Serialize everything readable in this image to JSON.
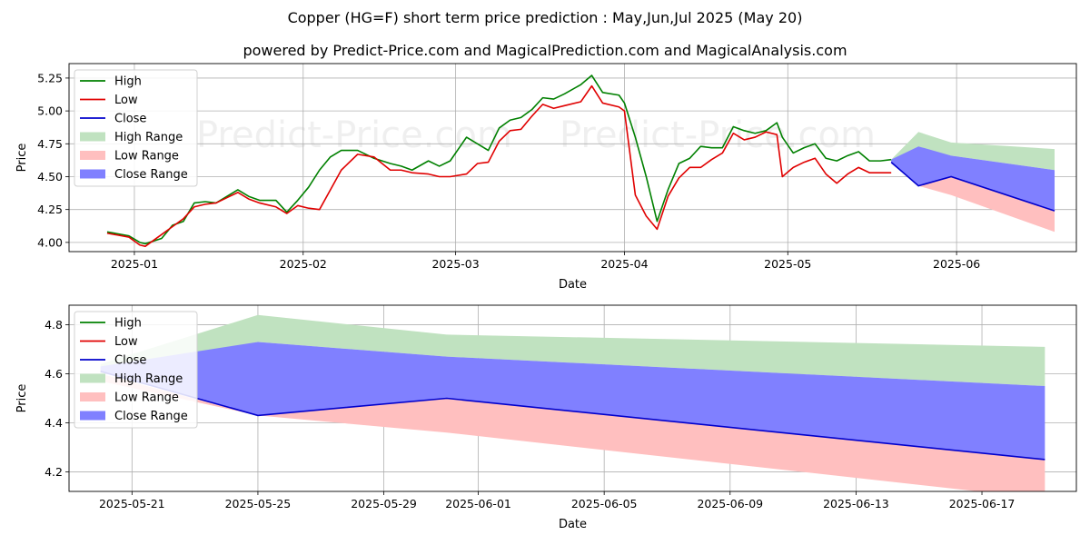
{
  "title": "Copper (HG=F) short term price prediction : May,Jun,Jul 2025 (May 20)",
  "subtitle": "powered by Predict-Price.com and MagicalPrediction.com and MagicalAnalysis.com",
  "watermark": "Predict-Price.com",
  "colors": {
    "high": "#008000",
    "low": "#e00000",
    "close": "#0000cc",
    "high_range": "#c0e2c0",
    "low_range": "#ffbfbf",
    "close_range": "#8080ff",
    "grid": "#b0b0b0"
  },
  "chart_data": [
    {
      "type": "line",
      "xlabel": "Date",
      "ylabel": "Price",
      "ylim": [
        3.93,
        5.36
      ],
      "xlim": [
        "2024-12-20",
        "2025-06-23"
      ],
      "x_ticks": [
        "2025-01",
        "2025-02",
        "2025-03",
        "2025-04",
        "2025-05",
        "2025-06"
      ],
      "y_ticks": [
        "4.00",
        "4.25",
        "4.50",
        "4.75",
        "5.00",
        "5.25"
      ],
      "legend_position": "upper-left",
      "grid": true,
      "series": [
        {
          "name": "High",
          "x": [
            "2024-12-27",
            "2024-12-31",
            "2025-01-02",
            "2025-01-03",
            "2025-01-06",
            "2025-01-08",
            "2025-01-10",
            "2025-01-12",
            "2025-01-14",
            "2025-01-16",
            "2025-01-20",
            "2025-01-22",
            "2025-01-24",
            "2025-01-27",
            "2025-01-29",
            "2025-01-31",
            "2025-02-02",
            "2025-02-04",
            "2025-02-06",
            "2025-02-08",
            "2025-02-11",
            "2025-02-14",
            "2025-02-17",
            "2025-02-19",
            "2025-02-21",
            "2025-02-24",
            "2025-02-26",
            "2025-02-28",
            "2025-03-03",
            "2025-03-05",
            "2025-03-07",
            "2025-03-09",
            "2025-03-11",
            "2025-03-13",
            "2025-03-15",
            "2025-03-17",
            "2025-03-19",
            "2025-03-21",
            "2025-03-24",
            "2025-03-26",
            "2025-03-28",
            "2025-03-31",
            "2025-04-01",
            "2025-04-03",
            "2025-04-05",
            "2025-04-07",
            "2025-04-09",
            "2025-04-11",
            "2025-04-13",
            "2025-04-15",
            "2025-04-17",
            "2025-04-19",
            "2025-04-21",
            "2025-04-23",
            "2025-04-25",
            "2025-04-27",
            "2025-04-29",
            "2025-04-30",
            "2025-05-02",
            "2025-05-04",
            "2025-05-06",
            "2025-05-08",
            "2025-05-10",
            "2025-05-12",
            "2025-05-14",
            "2025-05-16",
            "2025-05-18",
            "2025-05-20"
          ],
          "values": [
            4.08,
            4.05,
            4.0,
            3.99,
            4.03,
            4.13,
            4.16,
            4.3,
            4.31,
            4.3,
            4.4,
            4.35,
            4.32,
            4.32,
            4.23,
            4.32,
            4.42,
            4.55,
            4.65,
            4.7,
            4.7,
            4.64,
            4.6,
            4.58,
            4.55,
            4.62,
            4.58,
            4.62,
            4.8,
            4.75,
            4.7,
            4.87,
            4.93,
            4.95,
            5.01,
            5.1,
            5.09,
            5.13,
            5.2,
            5.27,
            5.14,
            5.12,
            5.06,
            4.8,
            4.5,
            4.16,
            4.4,
            4.6,
            4.64,
            4.73,
            4.72,
            4.72,
            4.88,
            4.85,
            4.83,
            4.85,
            4.91,
            4.8,
            4.68,
            4.72,
            4.75,
            4.64,
            4.62,
            4.66,
            4.69,
            4.62,
            4.62,
            4.63
          ]
        },
        {
          "name": "Low",
          "x": [
            "2024-12-27",
            "2024-12-31",
            "2025-01-02",
            "2025-01-03",
            "2025-01-06",
            "2025-01-08",
            "2025-01-10",
            "2025-01-12",
            "2025-01-14",
            "2025-01-16",
            "2025-01-20",
            "2025-01-22",
            "2025-01-24",
            "2025-01-27",
            "2025-01-29",
            "2025-01-31",
            "2025-02-02",
            "2025-02-04",
            "2025-02-06",
            "2025-02-08",
            "2025-02-11",
            "2025-02-14",
            "2025-02-17",
            "2025-02-19",
            "2025-02-21",
            "2025-02-24",
            "2025-02-26",
            "2025-02-28",
            "2025-03-03",
            "2025-03-05",
            "2025-03-07",
            "2025-03-09",
            "2025-03-11",
            "2025-03-13",
            "2025-03-15",
            "2025-03-17",
            "2025-03-19",
            "2025-03-21",
            "2025-03-24",
            "2025-03-26",
            "2025-03-28",
            "2025-03-31",
            "2025-04-01",
            "2025-04-03",
            "2025-04-05",
            "2025-04-07",
            "2025-04-09",
            "2025-04-11",
            "2025-04-13",
            "2025-04-15",
            "2025-04-17",
            "2025-04-19",
            "2025-04-21",
            "2025-04-23",
            "2025-04-25",
            "2025-04-27",
            "2025-04-29",
            "2025-04-30",
            "2025-05-02",
            "2025-05-04",
            "2025-05-06",
            "2025-05-08",
            "2025-05-10",
            "2025-05-12",
            "2025-05-14",
            "2025-05-16",
            "2025-05-18",
            "2025-05-20"
          ],
          "values": [
            4.07,
            4.04,
            3.98,
            3.97,
            4.06,
            4.12,
            4.18,
            4.27,
            4.29,
            4.3,
            4.38,
            4.33,
            4.3,
            4.27,
            4.22,
            4.28,
            4.26,
            4.25,
            4.4,
            4.55,
            4.67,
            4.65,
            4.55,
            4.55,
            4.53,
            4.52,
            4.5,
            4.5,
            4.52,
            4.6,
            4.61,
            4.77,
            4.85,
            4.86,
            4.96,
            5.05,
            5.02,
            5.04,
            5.07,
            5.19,
            5.06,
            5.03,
            5.0,
            4.36,
            4.2,
            4.1,
            4.35,
            4.49,
            4.57,
            4.57,
            4.63,
            4.68,
            4.83,
            4.78,
            4.8,
            4.84,
            4.82,
            4.5,
            4.57,
            4.61,
            4.64,
            4.52,
            4.45,
            4.52,
            4.57,
            4.53,
            4.53,
            4.53
          ]
        }
      ],
      "ranges": [
        {
          "name": "High Range",
          "x": [
            "2025-05-20",
            "2025-05-25",
            "2025-05-31",
            "2025-06-19"
          ],
          "upper": [
            4.63,
            4.84,
            4.76,
            4.71
          ],
          "lower": [
            4.62,
            4.72,
            4.66,
            4.55
          ]
        },
        {
          "name": "Low Range",
          "x": [
            "2025-05-20",
            "2025-05-25",
            "2025-05-31",
            "2025-06-19"
          ],
          "upper": [
            4.62,
            4.43,
            4.5,
            4.24
          ],
          "lower": [
            4.6,
            4.43,
            4.36,
            4.08
          ]
        },
        {
          "name": "Close Range",
          "x": [
            "2025-05-20",
            "2025-05-25",
            "2025-05-31",
            "2025-06-19"
          ],
          "upper": [
            4.63,
            4.73,
            4.66,
            4.55
          ],
          "lower": [
            4.6,
            4.43,
            4.5,
            4.24
          ]
        }
      ],
      "close": {
        "name": "Close",
        "x": [
          "2025-05-20",
          "2025-05-25",
          "2025-05-31",
          "2025-06-19"
        ],
        "values": [
          4.61,
          4.43,
          4.5,
          4.24
        ]
      }
    },
    {
      "type": "line",
      "xlabel": "Date",
      "ylabel": "Price",
      "ylim": [
        4.12,
        4.88
      ],
      "xlim": [
        "2025-05-19",
        "2025-06-20"
      ],
      "x_ticks": [
        "2025-05-21",
        "2025-05-25",
        "2025-05-29",
        "2025-06-01",
        "2025-06-05",
        "2025-06-09",
        "2025-06-13",
        "2025-06-17"
      ],
      "y_ticks": [
        "4.2",
        "4.4",
        "4.6",
        "4.8"
      ],
      "legend_position": "upper-left",
      "grid": true,
      "series": [],
      "ranges": [
        {
          "name": "High Range",
          "x": [
            "2025-05-20",
            "2025-05-25",
            "2025-05-31",
            "2025-06-19"
          ],
          "upper": [
            4.64,
            4.84,
            4.76,
            4.71
          ],
          "lower": [
            4.6,
            4.73,
            4.67,
            4.55
          ]
        },
        {
          "name": "Low Range",
          "x": [
            "2025-05-20",
            "2025-05-25",
            "2025-05-31",
            "2025-06-19"
          ],
          "upper": [
            4.6,
            4.43,
            4.5,
            4.25
          ],
          "lower": [
            4.57,
            4.43,
            4.36,
            4.09
          ]
        },
        {
          "name": "Close Range",
          "x": [
            "2025-05-20",
            "2025-05-25",
            "2025-05-31",
            "2025-06-19"
          ],
          "upper": [
            4.63,
            4.73,
            4.67,
            4.55
          ],
          "lower": [
            4.61,
            4.43,
            4.5,
            4.25
          ]
        }
      ],
      "close": {
        "name": "Close",
        "x": [
          "2025-05-20",
          "2025-05-25",
          "2025-05-31",
          "2025-06-19"
        ],
        "values": [
          4.61,
          4.43,
          4.5,
          4.25
        ]
      }
    }
  ],
  "legend": [
    "High",
    "Low",
    "Close",
    "High Range",
    "Low Range",
    "Close Range"
  ]
}
